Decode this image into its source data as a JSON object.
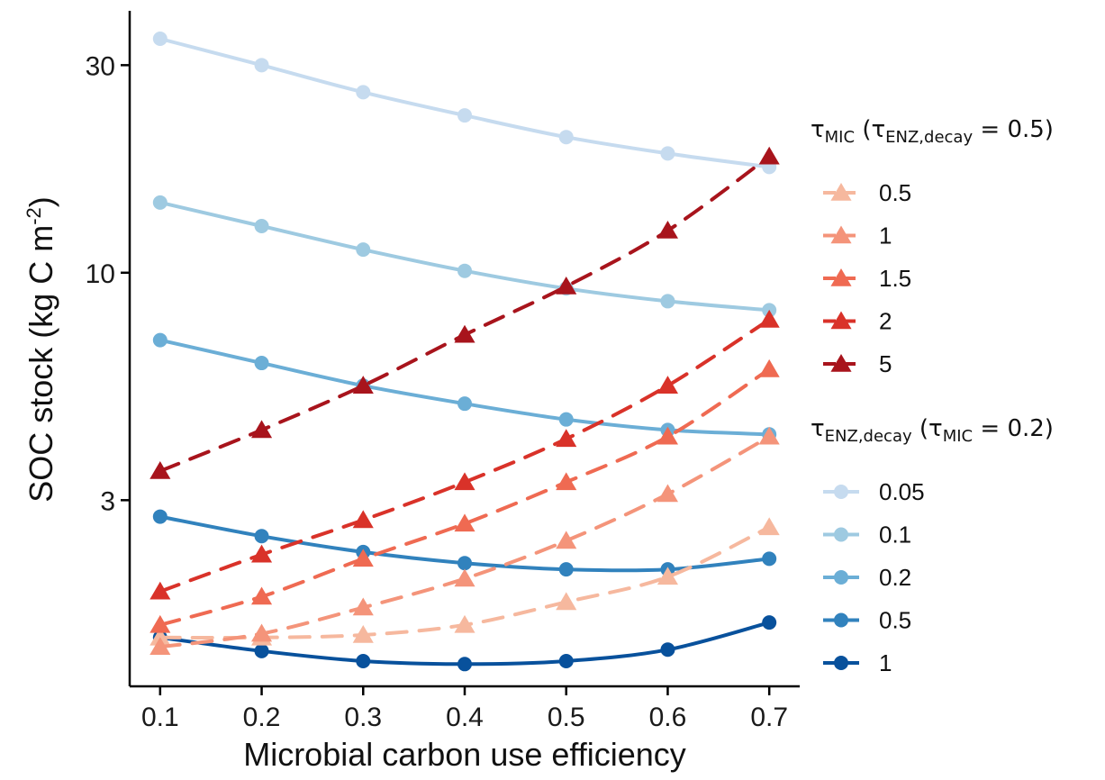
{
  "chart_data": {
    "type": "line",
    "xlabel": "Microbial carbon use efficiency",
    "ylabel": "SOC stock (kg C m",
    "ylabel_superscript": "-2",
    "ylabel_close": ")",
    "y_scale": "log",
    "xlim": [
      0.07,
      0.73
    ],
    "ylim": [
      1.12,
      40
    ],
    "x_ticks": [
      0.1,
      0.2,
      0.3,
      0.4,
      0.5,
      0.6,
      0.7
    ],
    "x_tick_labels": [
      "0.1",
      "0.2",
      "0.3",
      "0.4",
      "0.5",
      "0.6",
      "0.7"
    ],
    "y_ticks": [
      3,
      10,
      30
    ],
    "y_tick_labels": [
      "3",
      "10",
      "30"
    ],
    "grid": false,
    "legend_placement": "right",
    "x": [
      0.1,
      0.2,
      0.3,
      0.4,
      0.5,
      0.6,
      0.7
    ],
    "legend_groups": [
      {
        "title_parts": [
          [
            "τ",
            ""
          ],
          [
            "MIC",
            "sub"
          ],
          [
            " (τ",
            ""
          ],
          [
            "ENZ,decay",
            "sub"
          ],
          [
            " = 0.5)",
            ""
          ]
        ],
        "marker": "triangle",
        "line_style": "dashed",
        "series": [
          {
            "name": "0.5",
            "color": "#f6b89e",
            "values": [
              1.45,
              1.45,
              1.47,
              1.55,
              1.75,
              2.0,
              2.6
            ]
          },
          {
            "name": "1",
            "color": "#f4947a",
            "values": [
              1.38,
              1.48,
              1.7,
              1.98,
              2.42,
              3.1,
              4.2
            ]
          },
          {
            "name": "1.5",
            "color": "#ef6a52",
            "values": [
              1.55,
              1.8,
              2.2,
              2.65,
              3.3,
              4.2,
              6.0
            ]
          },
          {
            "name": "2",
            "color": "#d93229",
            "values": [
              1.85,
              2.25,
              2.7,
              3.3,
              4.15,
              5.5,
              7.8
            ]
          },
          {
            "name": "5",
            "color": "#a8141c",
            "values": [
              3.5,
              4.35,
              5.5,
              7.2,
              9.3,
              12.5,
              18.5
            ]
          }
        ]
      },
      {
        "title_parts": [
          [
            "τ",
            ""
          ],
          [
            "ENZ,decay",
            "sub"
          ],
          [
            " (τ",
            ""
          ],
          [
            "MIC",
            "sub"
          ],
          [
            " = 0.2)",
            ""
          ]
        ],
        "marker": "circle",
        "line_style": "solid",
        "series": [
          {
            "name": "0.05",
            "color": "#c6dbef",
            "values": [
              34.5,
              30.0,
              26.0,
              23.0,
              20.5,
              18.8,
              17.5
            ]
          },
          {
            "name": "0.1",
            "color": "#9ecae1",
            "values": [
              14.5,
              12.8,
              11.3,
              10.1,
              9.2,
              8.6,
              8.2
            ]
          },
          {
            "name": "0.2",
            "color": "#6baed6",
            "values": [
              7.0,
              6.2,
              5.5,
              5.0,
              4.6,
              4.35,
              4.25
            ]
          },
          {
            "name": "0.5",
            "color": "#3182bd",
            "values": [
              2.75,
              2.48,
              2.28,
              2.15,
              2.08,
              2.08,
              2.2
            ]
          },
          {
            "name": "1",
            "color": "#08519c",
            "values": [
              1.45,
              1.35,
              1.28,
              1.26,
              1.28,
              1.36,
              1.57
            ]
          }
        ]
      }
    ]
  }
}
